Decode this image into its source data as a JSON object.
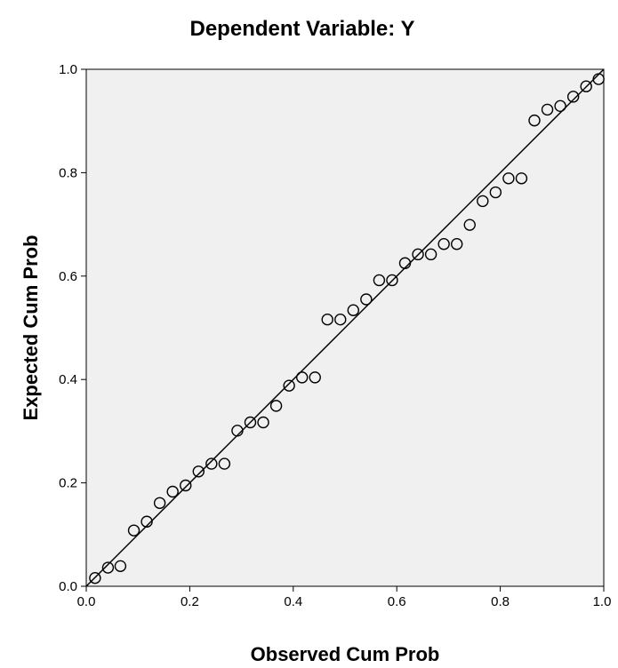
{
  "chart_data": {
    "type": "scatter",
    "title": "Dependent Variable: Y",
    "xlabel": "Observed Cum Prob",
    "ylabel": "Expected Cum Prob",
    "xlim": [
      0.0,
      1.0
    ],
    "ylim": [
      0.0,
      1.0
    ],
    "x_ticks": [
      "0.0",
      "0.2",
      "0.4",
      "0.6",
      "0.8",
      "1.0"
    ],
    "y_ticks": [
      "0.0",
      "0.2",
      "0.4",
      "0.6",
      "0.8",
      "1.0"
    ],
    "grid": false,
    "reference_line": {
      "from": [
        0,
        0
      ],
      "to": [
        1,
        1
      ]
    },
    "points": [
      {
        "x": 0.017,
        "y": 0.016
      },
      {
        "x": 0.042,
        "y": 0.036
      },
      {
        "x": 0.066,
        "y": 0.039
      },
      {
        "x": 0.092,
        "y": 0.108
      },
      {
        "x": 0.117,
        "y": 0.125
      },
      {
        "x": 0.142,
        "y": 0.161
      },
      {
        "x": 0.167,
        "y": 0.183
      },
      {
        "x": 0.192,
        "y": 0.195
      },
      {
        "x": 0.217,
        "y": 0.222
      },
      {
        "x": 0.242,
        "y": 0.237
      },
      {
        "x": 0.267,
        "y": 0.237
      },
      {
        "x": 0.292,
        "y": 0.301
      },
      {
        "x": 0.317,
        "y": 0.317
      },
      {
        "x": 0.342,
        "y": 0.317
      },
      {
        "x": 0.367,
        "y": 0.349
      },
      {
        "x": 0.392,
        "y": 0.388
      },
      {
        "x": 0.417,
        "y": 0.404
      },
      {
        "x": 0.442,
        "y": 0.404
      },
      {
        "x": 0.466,
        "y": 0.516
      },
      {
        "x": 0.491,
        "y": 0.516
      },
      {
        "x": 0.516,
        "y": 0.534
      },
      {
        "x": 0.541,
        "y": 0.555
      },
      {
        "x": 0.566,
        "y": 0.592
      },
      {
        "x": 0.591,
        "y": 0.592
      },
      {
        "x": 0.616,
        "y": 0.625
      },
      {
        "x": 0.641,
        "y": 0.642
      },
      {
        "x": 0.666,
        "y": 0.642
      },
      {
        "x": 0.691,
        "y": 0.662
      },
      {
        "x": 0.716,
        "y": 0.662
      },
      {
        "x": 0.741,
        "y": 0.699
      },
      {
        "x": 0.766,
        "y": 0.745
      },
      {
        "x": 0.791,
        "y": 0.762
      },
      {
        "x": 0.816,
        "y": 0.789
      },
      {
        "x": 0.841,
        "y": 0.789
      },
      {
        "x": 0.866,
        "y": 0.901
      },
      {
        "x": 0.891,
        "y": 0.922
      },
      {
        "x": 0.916,
        "y": 0.929
      },
      {
        "x": 0.941,
        "y": 0.947
      },
      {
        "x": 0.966,
        "y": 0.967
      },
      {
        "x": 0.99,
        "y": 0.981
      }
    ],
    "colors": {
      "background": "#ffffff",
      "plot_area": "#f0f0f0",
      "ink": "#000000"
    }
  }
}
